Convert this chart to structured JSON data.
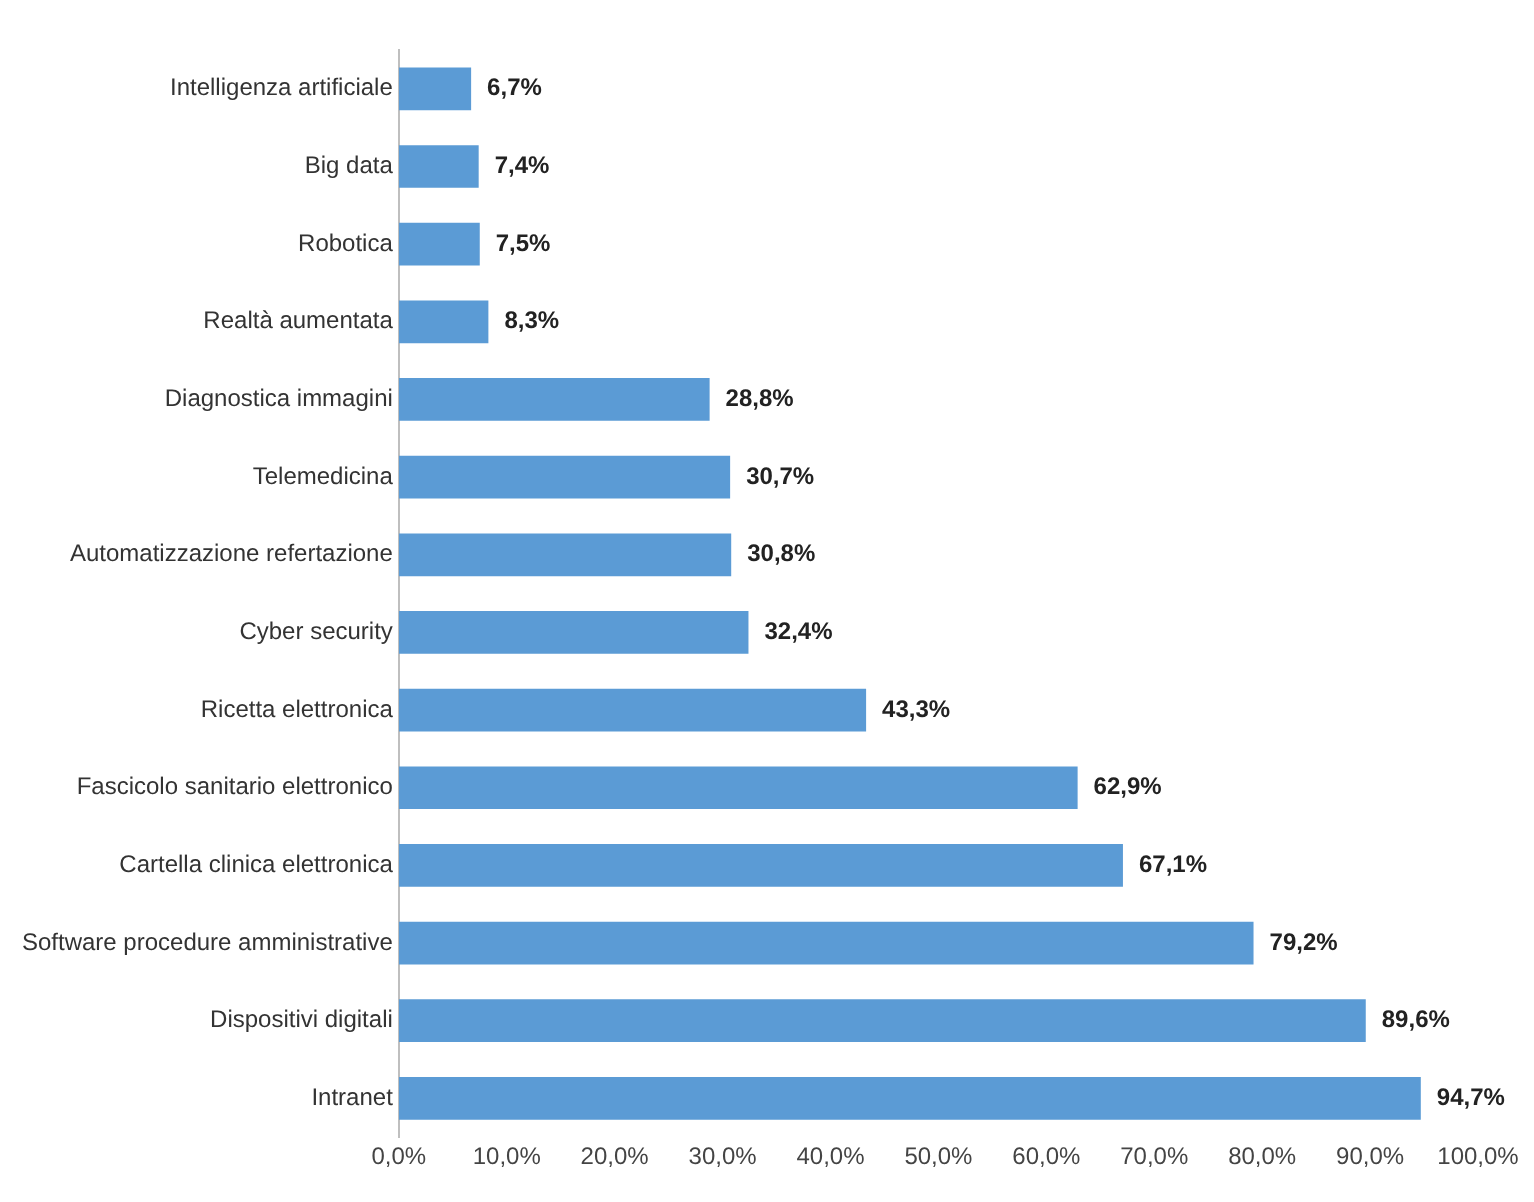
{
  "chart_data": {
    "type": "bar",
    "orientation": "horizontal",
    "categories": [
      "Intelligenza artificiale",
      "Big data",
      "Robotica",
      "Realtà aumentata",
      "Diagnostica immagini",
      "Telemedicina",
      "Automatizzazione refertazione",
      "Cyber security",
      "Ricetta elettronica",
      "Fascicolo sanitario elettronico",
      "Cartella clinica elettronica",
      "Software procedure amministrative",
      "Dispositivi digitali",
      "Intranet"
    ],
    "values": [
      6.7,
      7.4,
      7.5,
      8.3,
      28.8,
      30.7,
      30.8,
      32.4,
      43.3,
      62.9,
      67.1,
      79.2,
      89.6,
      94.7
    ],
    "value_labels": [
      "6,7%",
      "7,4%",
      "7,5%",
      "8,3%",
      "28,8%",
      "30,7%",
      "30,8%",
      "32,4%",
      "43,3%",
      "62,9%",
      "67,1%",
      "79,2%",
      "89,6%",
      "94,7%"
    ],
    "color": "#5b9bd5",
    "xlim": [
      0,
      100
    ],
    "xticks": [
      {
        "value": 0,
        "label": "0,0%"
      },
      {
        "value": 10,
        "label": "10,0%"
      },
      {
        "value": 20,
        "label": "20,0%"
      },
      {
        "value": 30,
        "label": "30,0%"
      },
      {
        "value": 40,
        "label": "40,0%"
      },
      {
        "value": 50,
        "label": "50,0%"
      },
      {
        "value": 60,
        "label": "60,0%"
      },
      {
        "value": 70,
        "label": "70,0%"
      },
      {
        "value": 80,
        "label": "80,0%"
      },
      {
        "value": 90,
        "label": "90,0%"
      },
      {
        "value": 100,
        "label": "100,0%"
      }
    ],
    "grid": false,
    "legend": false
  }
}
